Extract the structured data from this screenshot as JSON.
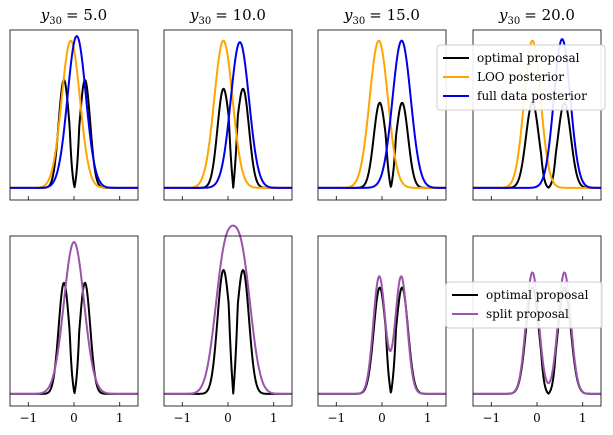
{
  "chart_data": {
    "type": "line",
    "layout": "2 rows x 4 columns of density plots",
    "x_range": [
      -1.4,
      1.4
    ],
    "x_ticks": [
      -1,
      0,
      1
    ],
    "x_tick_labels": [
      "−1",
      "0",
      "1"
    ],
    "y_range": [
      0,
      1.12
    ],
    "column_titles": [
      {
        "symbol": "y",
        "subscript": "30",
        "value": "= 5.0"
      },
      {
        "symbol": "y",
        "subscript": "30",
        "value": "= 10.0"
      },
      {
        "symbol": "y",
        "subscript": "30",
        "value": "= 15.0"
      },
      {
        "symbol": "y",
        "subscript": "30",
        "value": "= 20.0"
      }
    ],
    "columns": [
      {
        "y30": 5.0,
        "optimal": {
          "mu": [
            -0.22,
            0.24
          ],
          "sd": 0.115,
          "scale": 0.71
        },
        "loo": {
          "mu": -0.07,
          "sd": 0.2,
          "amp": 0.97
        },
        "full": {
          "mu": 0.06,
          "sd": 0.2,
          "amp": 1.0
        },
        "split": {
          "mu": 0.0,
          "sd": 0.22,
          "amp": 1.0
        },
        "optimal_bottom_scale": 0.84
      },
      {
        "y30": 10.0,
        "optimal": {
          "mu": [
            -0.1,
            0.33
          ],
          "sd": 0.13,
          "scale": 0.65
        },
        "loo": {
          "mu": -0.1,
          "sd": 0.2,
          "amp": 0.97
        },
        "full": {
          "mu": 0.26,
          "sd": 0.2,
          "amp": 0.96
        },
        "split": {
          "mu": [
            -0.08,
            0.3
          ],
          "sd": 0.21,
          "amp": 0.96
        },
        "optimal_bottom_scale": 1.0
      },
      {
        "y30": 15.0,
        "optimal": {
          "mu": [
            -0.05,
            0.44
          ],
          "sd": 0.13,
          "scale": 0.56
        },
        "loo": {
          "mu": -0.07,
          "sd": 0.2,
          "amp": 0.97
        },
        "full": {
          "mu": 0.43,
          "sd": 0.2,
          "amp": 0.97
        },
        "split": {
          "mu": [
            -0.06,
            0.42
          ],
          "sd": 0.13,
          "amp": 0.89
        },
        "optimal_bottom_scale": 1.0
      },
      {
        "y30": 20.0,
        "optimal": {
          "mu": [
            -0.1,
            0.6
          ],
          "sd": 0.14,
          "scale": 0.56
        },
        "loo": {
          "mu": -0.1,
          "sd": 0.18,
          "amp": 0.97
        },
        "full": {
          "mu": 0.55,
          "sd": 0.18,
          "amp": 0.98
        },
        "split": {
          "mu": [
            -0.1,
            0.6
          ],
          "sd": 0.14,
          "amp": 0.92
        },
        "optimal_bottom_scale": 1.0
      }
    ],
    "top_legend": [
      {
        "label": "optimal proposal",
        "color": "#000000"
      },
      {
        "label": "LOO posterior",
        "color": "#ffa500"
      },
      {
        "label": "full data posterior",
        "color": "#0000ee"
      }
    ],
    "bottom_legend": [
      {
        "label": "optimal proposal",
        "color": "#000000"
      },
      {
        "label": "split proposal",
        "color": "#9955aa"
      }
    ],
    "colors": {
      "optimal": "#000000",
      "loo": "#ffa500",
      "full": "#0000ee",
      "split": "#9955aa"
    }
  }
}
